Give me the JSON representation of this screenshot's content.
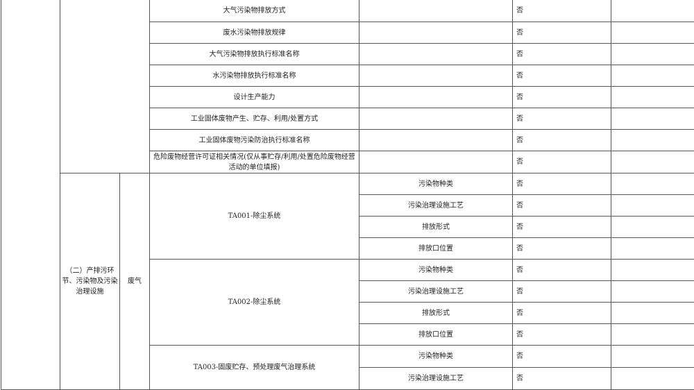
{
  "section1_rows": [
    {
      "item": "大气污染物排放方式",
      "status": "否"
    },
    {
      "item": "废水污染物排放规律",
      "status": "否"
    },
    {
      "item": "大气污染物排放执行标准名称",
      "status": "否"
    },
    {
      "item": "水污染物排放执行标准名称",
      "status": "否"
    },
    {
      "item": "设计生产能力",
      "status": "否"
    },
    {
      "item": "工业固体废物产生、贮存、利用/处置方式",
      "status": "否"
    },
    {
      "item": "工业固体废物污染防治执行标准名称",
      "status": "否"
    },
    {
      "item": "危险废物经营许可证相关情况(仅从事贮存/利用/处置危险废物经营活动的单位填报)",
      "status": "否"
    }
  ],
  "section2": {
    "title": "（二）产排污环节、污染物及污染治理设施",
    "category": "废气",
    "systems": [
      {
        "name": "TA001-除尘系统",
        "rows": [
          {
            "item": "污染物种类",
            "status": "否"
          },
          {
            "item": "污染治理设施工艺",
            "status": "否"
          },
          {
            "item": "排放形式",
            "status": "否"
          },
          {
            "item": "排放口位置",
            "status": "否"
          }
        ]
      },
      {
        "name": "TA002-除尘系统",
        "rows": [
          {
            "item": "污染物种类",
            "status": "否"
          },
          {
            "item": "污染治理设施工艺",
            "status": "否"
          },
          {
            "item": "排放形式",
            "status": "否"
          },
          {
            "item": "排放口位置",
            "status": "否"
          }
        ]
      },
      {
        "name": "TA003-固废贮存、预处理废气治理系统",
        "rows": [
          {
            "item": "污染物种类",
            "status": "否"
          },
          {
            "item": "污染治理设施工艺",
            "status": "否"
          }
        ]
      }
    ]
  }
}
